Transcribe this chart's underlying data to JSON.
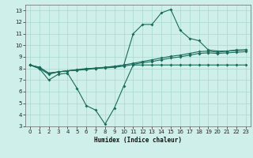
{
  "xlabel": "Humidex (Indice chaleur)",
  "bg_color": "#cff0ea",
  "grid_color": "#a8d8d0",
  "line_color": "#1a6b5a",
  "x_values": [
    0,
    1,
    2,
    3,
    4,
    5,
    6,
    7,
    8,
    9,
    10,
    11,
    12,
    13,
    14,
    15,
    16,
    17,
    18,
    19,
    20,
    21,
    22,
    23
  ],
  "line_dip": [
    8.3,
    8.0,
    7.0,
    7.5,
    7.6,
    6.3,
    4.8,
    4.4,
    3.2,
    4.6,
    6.5,
    8.3,
    8.3,
    8.3,
    8.3,
    8.3,
    8.3,
    8.3,
    8.3,
    8.3,
    8.3,
    8.3,
    8.3,
    8.3
  ],
  "line_low": [
    8.3,
    8.1,
    7.6,
    7.7,
    7.8,
    7.85,
    7.9,
    8.0,
    8.05,
    8.1,
    8.2,
    8.35,
    8.5,
    8.6,
    8.75,
    8.9,
    9.0,
    9.15,
    9.3,
    9.35,
    9.3,
    9.35,
    9.4,
    9.45
  ],
  "line_mid": [
    8.3,
    8.1,
    7.6,
    7.7,
    7.8,
    7.85,
    7.95,
    8.05,
    8.1,
    8.15,
    8.3,
    8.45,
    8.6,
    8.75,
    8.9,
    9.05,
    9.15,
    9.3,
    9.45,
    9.5,
    9.4,
    9.5,
    9.55,
    9.6
  ],
  "line_peak": [
    8.3,
    8.0,
    7.5,
    7.7,
    7.8,
    7.9,
    8.0,
    8.0,
    8.1,
    8.2,
    8.3,
    11.0,
    11.8,
    11.8,
    12.8,
    13.1,
    11.3,
    10.6,
    10.4,
    9.6,
    9.5,
    9.5,
    9.6,
    9.6
  ],
  "ylim": [
    3,
    13.5
  ],
  "xlim": [
    -0.5,
    23.5
  ],
  "yticks": [
    3,
    4,
    5,
    6,
    7,
    8,
    9,
    10,
    11,
    12,
    13
  ],
  "xticks": [
    0,
    1,
    2,
    3,
    4,
    5,
    6,
    7,
    8,
    9,
    10,
    11,
    12,
    13,
    14,
    15,
    16,
    17,
    18,
    19,
    20,
    21,
    22,
    23
  ]
}
